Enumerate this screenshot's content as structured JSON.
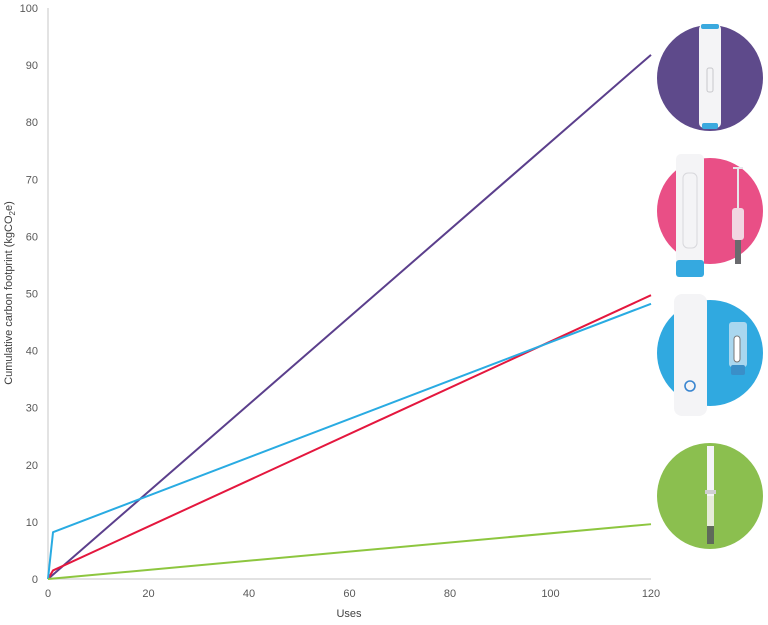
{
  "chart_data": {
    "type": "line",
    "title": "",
    "xlabel": "Uses",
    "ylabel": "Cumulative carbon footprint (kgCO2e)",
    "xlim": [
      0,
      120
    ],
    "ylim": [
      0,
      100
    ],
    "x_ticks": [
      0,
      20,
      40,
      60,
      80,
      100,
      120
    ],
    "y_ticks": [
      0,
      10,
      20,
      30,
      40,
      50,
      60,
      70,
      80,
      90,
      100
    ],
    "grid": false,
    "legend": "device images on right (no text)",
    "series": [
      {
        "name": "Purple device (disposable pen)",
        "color": "#5b3f8c",
        "x": [
          0,
          120
        ],
        "y": [
          0,
          91.8
        ]
      },
      {
        "name": "Pink device (reusable pen + cartridge)",
        "color": "#e4173e",
        "x": [
          0,
          1,
          120
        ],
        "y": [
          0,
          1.5,
          49.7
        ]
      },
      {
        "name": "Blue device (reusable autoinjector + cassette)",
        "color": "#29abe2",
        "x": [
          0,
          1,
          120
        ],
        "y": [
          0,
          8.2,
          48.2
        ]
      },
      {
        "name": "Green device (prefilled syringe)",
        "color": "#8dc63f",
        "x": [
          0,
          120
        ],
        "y": [
          0,
          9.6
        ]
      }
    ]
  },
  "axes": {
    "xlabel": "Uses",
    "ylabel_main": "Cumulative carbon footprint (kgCO",
    "ylabel_sub": "2",
    "ylabel_end": "e)"
  },
  "legend_icons": [
    {
      "name": "purple-device",
      "circle_color": "#5e4a8b"
    },
    {
      "name": "pink-device",
      "circle_color": "#e94f86"
    },
    {
      "name": "blue-device",
      "circle_color": "#30a9e0"
    },
    {
      "name": "green-device",
      "circle_color": "#8bbf4f"
    }
  ]
}
